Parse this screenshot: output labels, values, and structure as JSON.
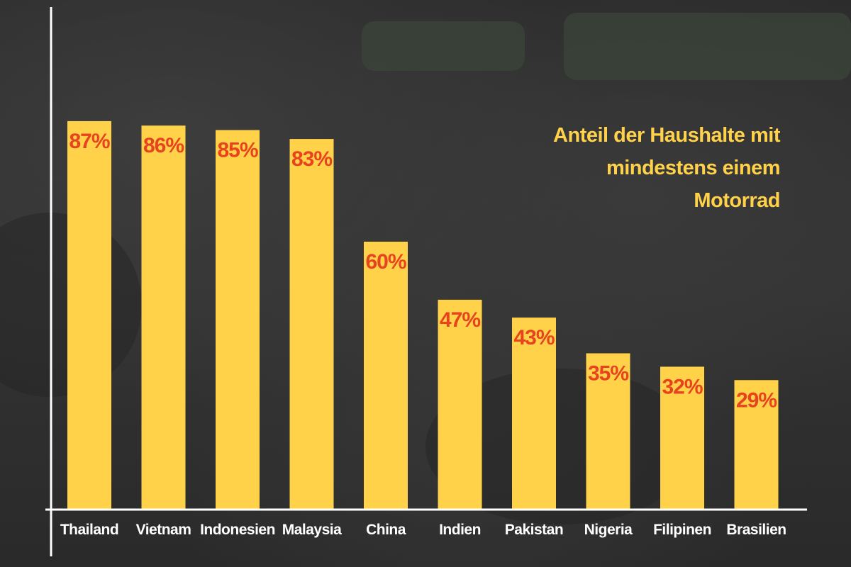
{
  "title_lines": [
    "Anteil der Haushalte mit",
    "mindestens einem Motorrad"
  ],
  "colors": {
    "bar": "#ffd24a",
    "value_label": "#e8431f",
    "axis": "#ffffff",
    "tick_label": "#ffffff",
    "title": "#ffd24a"
  },
  "chart_data": {
    "type": "bar",
    "title": "Anteil der Haushalte mit mindestens einem Motorrad",
    "xlabel": "",
    "ylabel": "",
    "ylim": [
      0,
      100
    ],
    "grid": false,
    "categories": [
      "Thailand",
      "Vietnam",
      "Indonesien",
      "Malaysia",
      "China",
      "Indien",
      "Pakistan",
      "Nigeria",
      "Filipinen",
      "Brasilien"
    ],
    "values": [
      87,
      86,
      85,
      83,
      60,
      47,
      43,
      35,
      32,
      29
    ],
    "value_labels": [
      "87%",
      "86%",
      "85%",
      "83%",
      "60%",
      "47%",
      "43%",
      "35%",
      "32%",
      "29%"
    ]
  }
}
